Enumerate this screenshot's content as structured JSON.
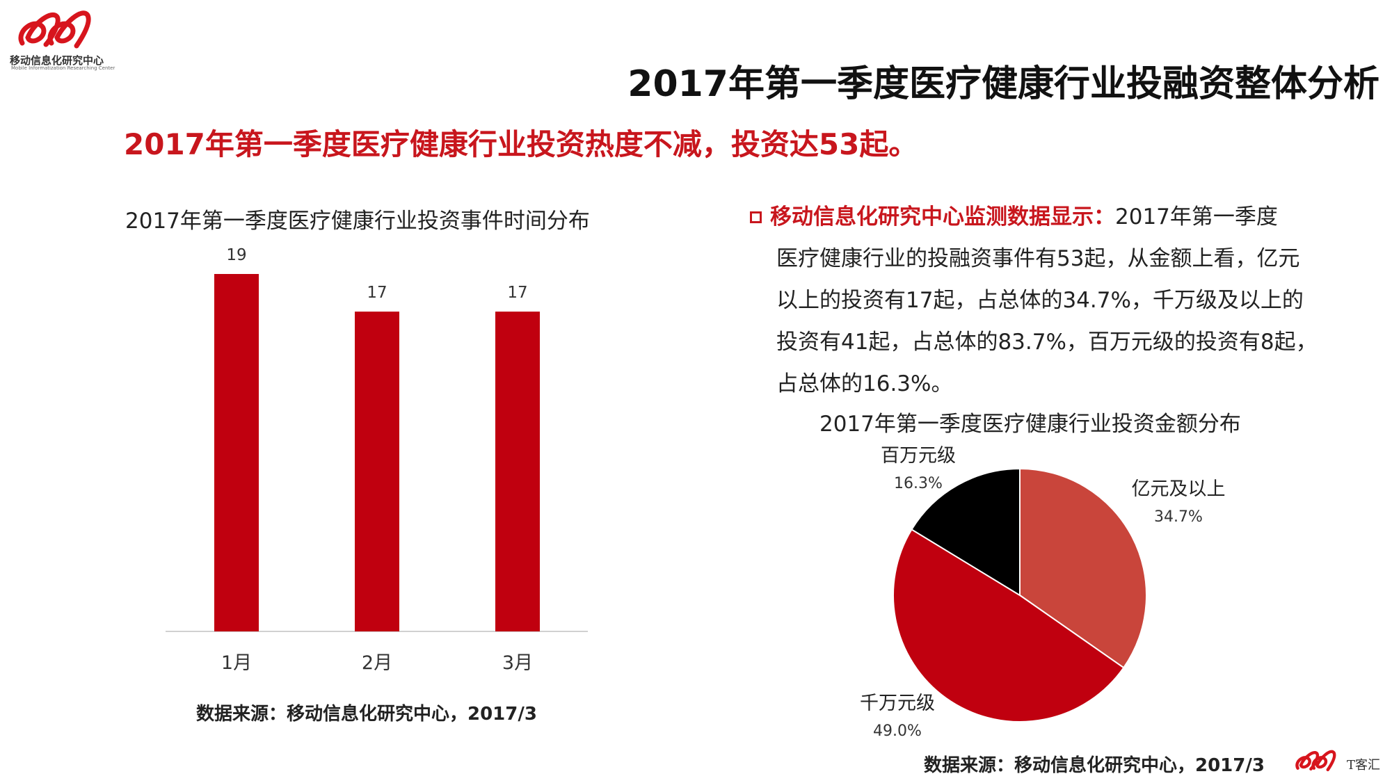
{
  "logo": {
    "name_cn": "移动信息化研究中心",
    "name_en": "Mobile Informatization Researching Center"
  },
  "main_title": "2017年第一季度医疗健康行业投融资整体分析",
  "subtitle": "2017年第一季度医疗健康行业投资热度不减，投资达53起。",
  "description": {
    "label": "移动信息化研究中心监测数据显示：",
    "lines": [
      "2017年第一季度",
      "医疗健康行业的投融资事件有53起，从金额上看，亿元",
      "以上的投资有17起，占总体的34.7%，千万级及以上的",
      "投资有41起，占总体的83.7%，百万元级的投资有8起，",
      "占总体的16.3%。"
    ]
  },
  "colors": {
    "accent": "#c8161d",
    "bar": "#c0000f",
    "pie": [
      "#c9453b",
      "#c0000f",
      "#000000"
    ]
  },
  "chart_data": [
    {
      "type": "bar",
      "title": "2017年第一季度医疗健康行业投资事件时间分布",
      "categories": [
        "1月",
        "2月",
        "3月"
      ],
      "values": [
        19,
        17,
        17
      ],
      "data_labels": [
        "19",
        "17",
        "17"
      ],
      "xlabel": "",
      "ylabel": "",
      "ylim": [
        0,
        19
      ],
      "grid": false,
      "source": "数据来源：移动信息化研究中心，2017/3"
    },
    {
      "type": "pie",
      "title": "2017年第一季度医疗健康行业投资金额分布",
      "labels": [
        "亿元及以上",
        "千万元级",
        "百万元级"
      ],
      "values": [
        34.7,
        49.0,
        16.3
      ],
      "value_labels": [
        "34.7%",
        "49.0%",
        "16.3%"
      ],
      "source": "数据来源：移动信息化研究中心，2017/3"
    }
  ],
  "footer": {
    "brand": "T客汇"
  }
}
